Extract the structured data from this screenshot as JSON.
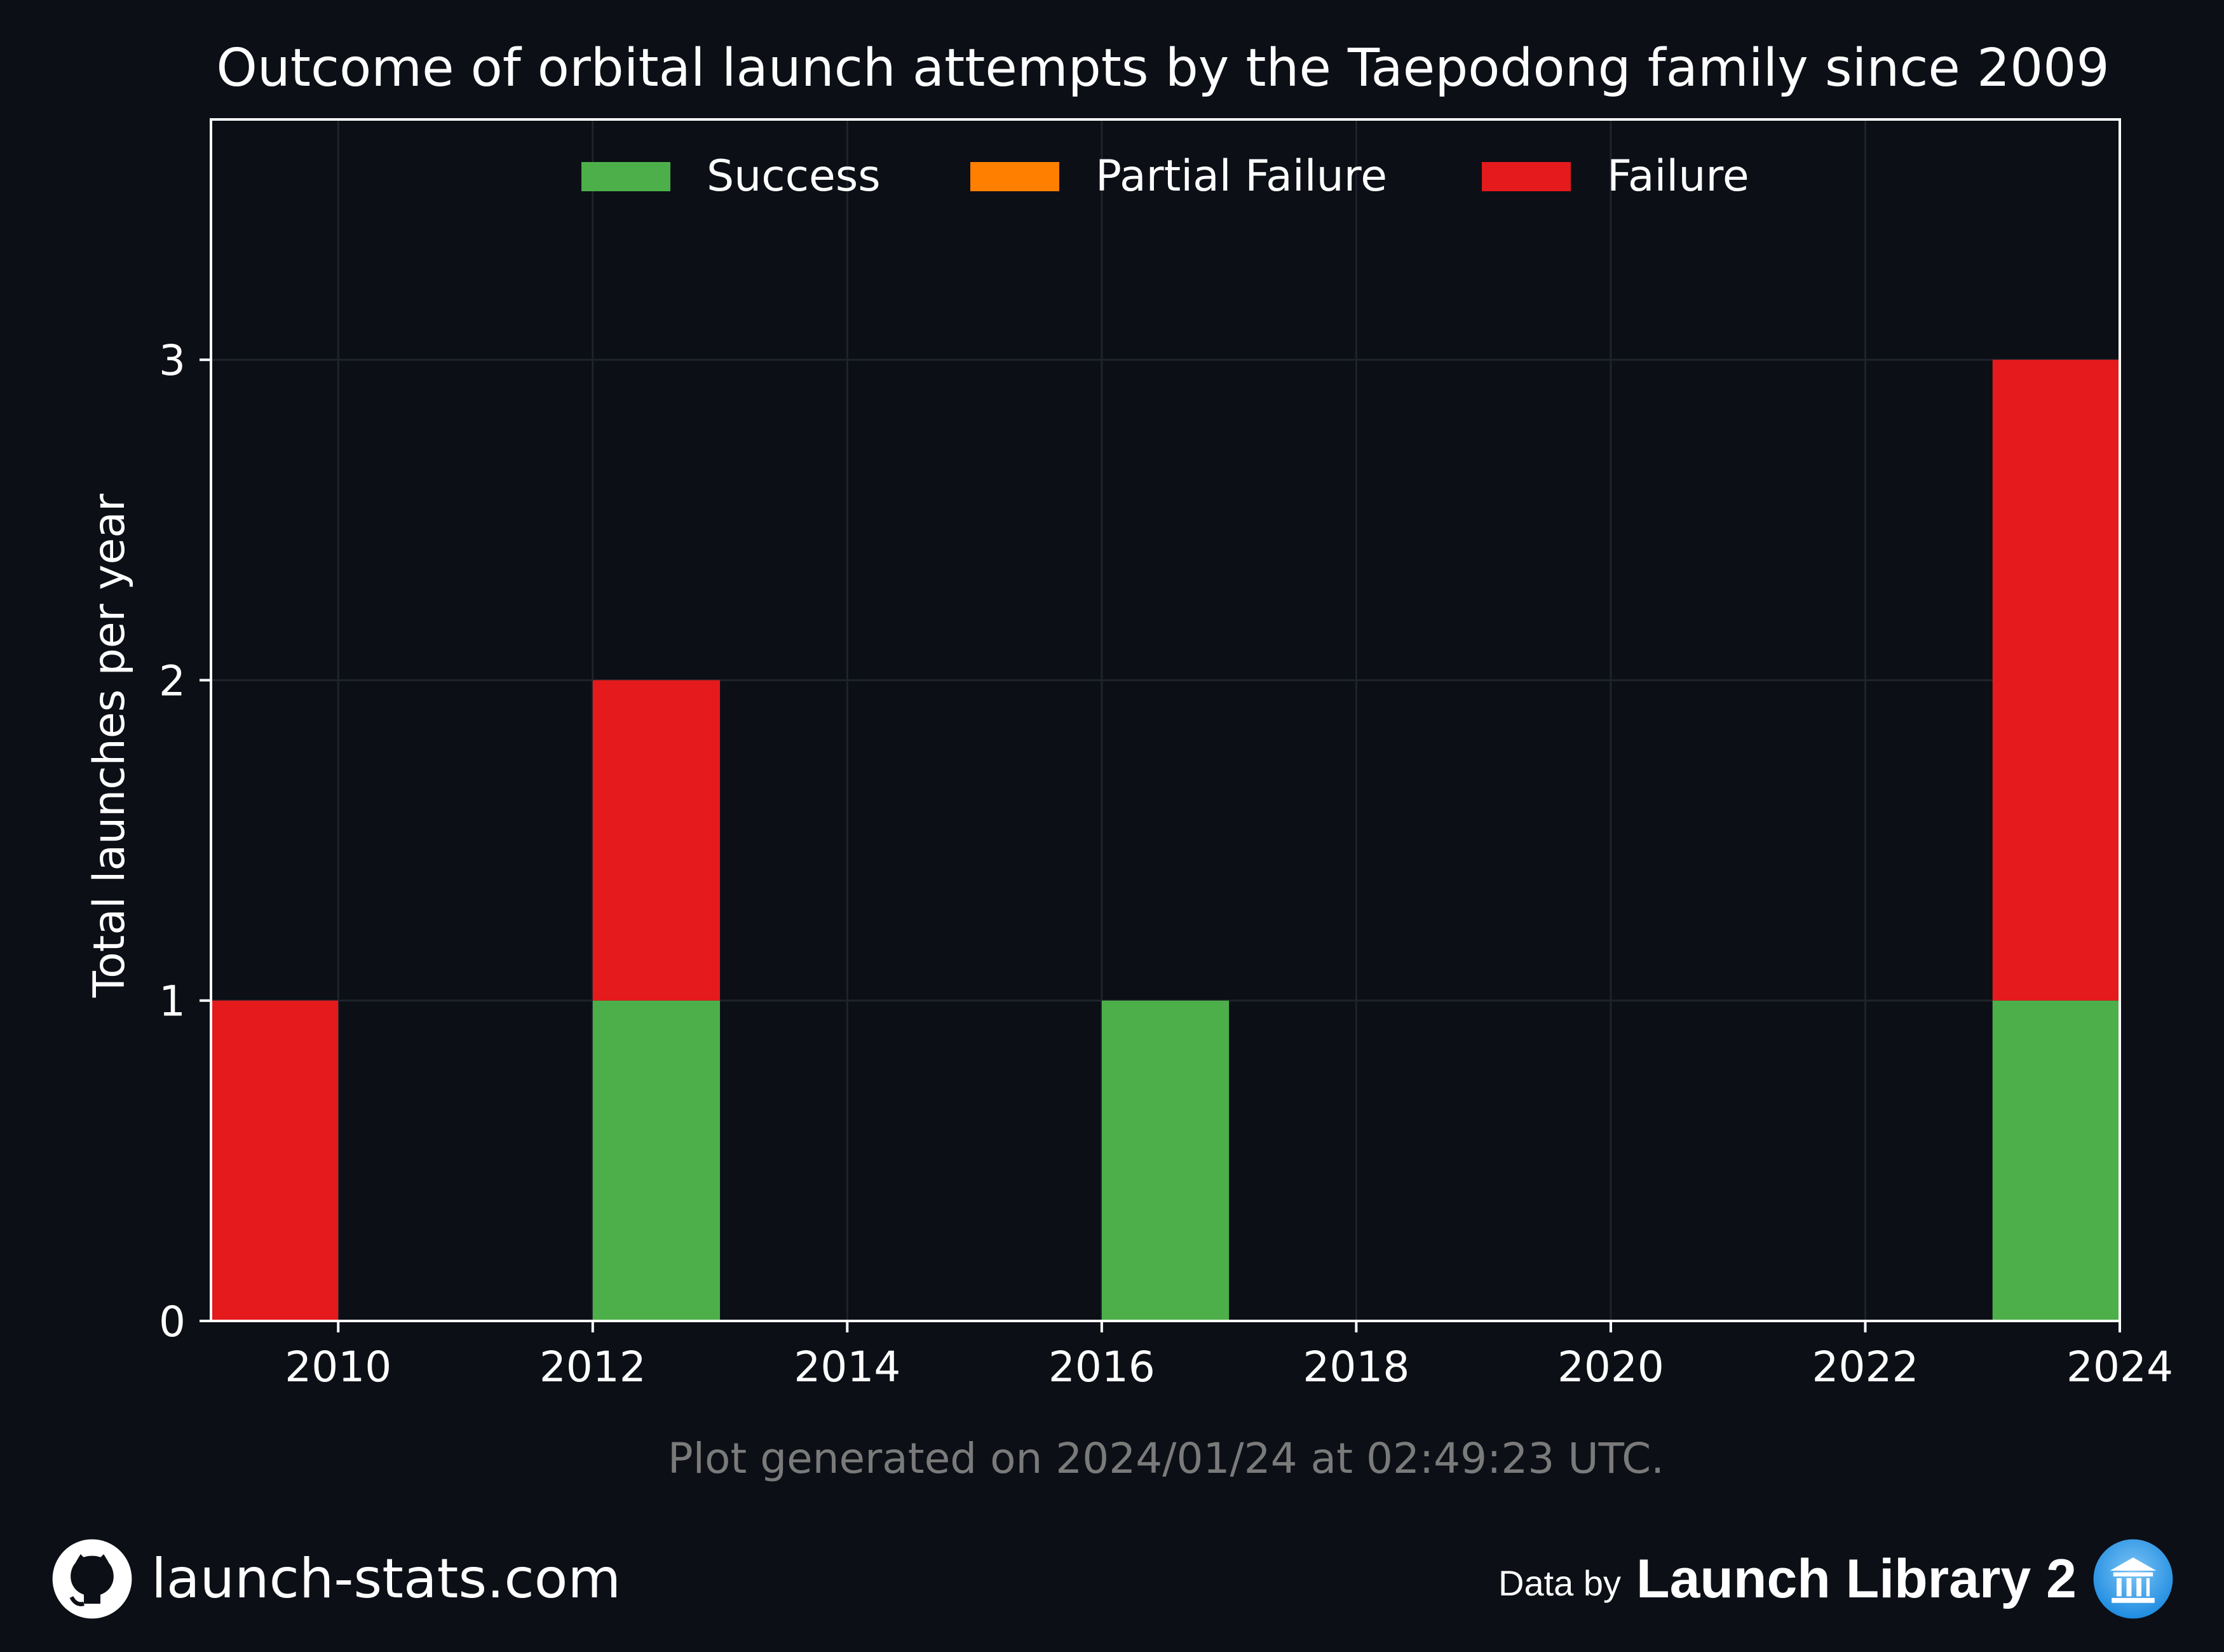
{
  "chart_data": {
    "type": "bar",
    "stacked": true,
    "title": "Outcome of orbital launch attempts by the Taepodong family since 2009",
    "xlabel": "",
    "ylabel": "Total launches per year",
    "x": [
      2009,
      2010,
      2011,
      2012,
      2013,
      2014,
      2015,
      2016,
      2017,
      2018,
      2019,
      2020,
      2021,
      2022,
      2023
    ],
    "series": [
      {
        "name": "Success",
        "color": "#4daf4a",
        "values": [
          0,
          0,
          0,
          1,
          0,
          0,
          0,
          1,
          0,
          0,
          0,
          0,
          0,
          0,
          1
        ]
      },
      {
        "name": "Partial Failure",
        "color": "#ff7f00",
        "values": [
          0,
          0,
          0,
          0,
          0,
          0,
          0,
          0,
          0,
          0,
          0,
          0,
          0,
          0,
          0
        ]
      },
      {
        "name": "Failure",
        "color": "#e41a1c",
        "values": [
          1,
          0,
          0,
          1,
          0,
          0,
          0,
          0,
          0,
          0,
          0,
          0,
          0,
          0,
          2
        ]
      }
    ],
    "xlim": [
      2009,
      2024
    ],
    "ylim": [
      0,
      3.75
    ],
    "xticks": [
      2010,
      2012,
      2014,
      2016,
      2018,
      2020,
      2022,
      2024
    ],
    "yticks": [
      0,
      1,
      2,
      3
    ],
    "grid": true,
    "legend": "top-center"
  },
  "caption": "Plot generated on 2024/01/24 at 02:49:23 UTC.",
  "footer": {
    "site": "launch-stats.com",
    "site_icon": "github-icon",
    "data_by": "Data by",
    "source": "Launch Library 2",
    "source_icon": "launch-library-icon"
  },
  "colors": {
    "background": "#0c0f16",
    "axis": "#ffffff",
    "grid": "#1e232c",
    "caption": "#7a7a7a"
  }
}
